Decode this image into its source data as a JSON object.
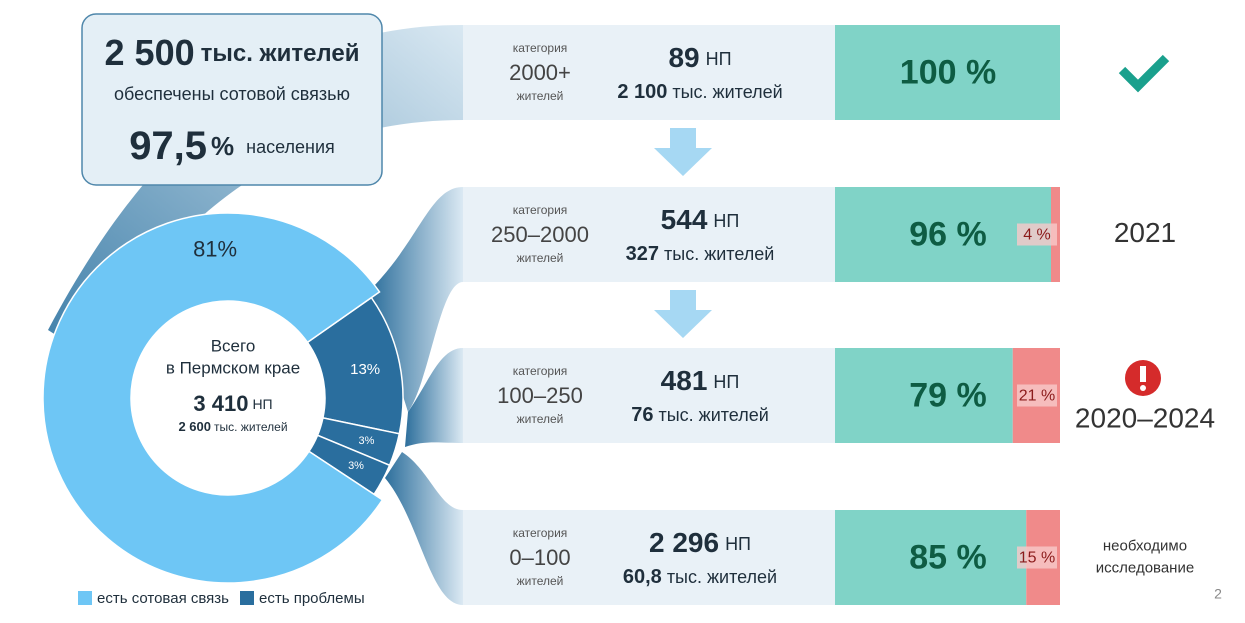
{
  "summary": {
    "residents": "2 500",
    "residents_unit": "тыс. жителей",
    "residents_text": "обеспечены сотовой связью",
    "share": "97,5",
    "share_unit": "%",
    "share_text": "населения"
  },
  "chart_data": {
    "type": "donut",
    "values": [
      81,
      13,
      3,
      3
    ],
    "value_labels": [
      "81%",
      "13%",
      "3%",
      "3%"
    ],
    "colors": [
      "#6ec6f5",
      "#2a6e9e",
      "#2a6e9e",
      "#2a6e9e"
    ],
    "center": {
      "line1": "Всего",
      "line2": "в Пермском крае",
      "count": "3 410",
      "count_unit": "НП",
      "population": "2 600",
      "population_unit": "тыс. жителей"
    },
    "legend": [
      {
        "name": "есть сотовая связь",
        "color": "#6ec6f5"
      },
      {
        "name": "есть проблемы",
        "color": "#2a6e9e"
      }
    ]
  },
  "rows": [
    {
      "label": "категория",
      "range": "2000+",
      "unit": "жителей",
      "np": "89",
      "np_unit": "НП",
      "population": "2 100",
      "population_unit": "тыс. жителей",
      "coverage": 100,
      "coverage_label": "100 %"
    },
    {
      "label": "категория",
      "range": "250–2000",
      "unit": "жителей",
      "np": "544",
      "np_unit": "НП",
      "population": "327",
      "population_unit": "тыс. жителей",
      "coverage": 96,
      "coverage_label": "96 %",
      "gap": 4,
      "gap_label": "4 %",
      "status": [
        "2021"
      ]
    },
    {
      "label": "категория",
      "range": "100–250",
      "unit": "жителей",
      "np": "481",
      "np_unit": "НП",
      "population": "76",
      "population_unit": "тыс. жителей",
      "coverage": 79,
      "coverage_label": "79 %",
      "gap": 21,
      "gap_label": "21 %",
      "status": [
        "2020–2024"
      ]
    },
    {
      "label": "категория",
      "range": "0–100",
      "unit": "жителей",
      "np": "2 296",
      "np_unit": "НП",
      "population": "60,8",
      "population_unit": "тыс. жителей",
      "coverage": 85,
      "coverage_label": "85 %",
      "gap": 15,
      "gap_label": "15 %",
      "status": [
        "необходимо",
        "исследование"
      ]
    }
  ],
  "page_number": "2"
}
